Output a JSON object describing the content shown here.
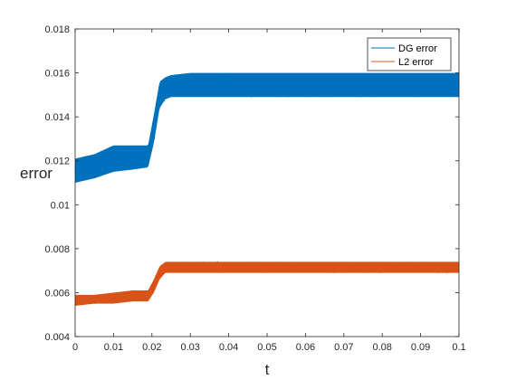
{
  "chart_data": {
    "type": "line",
    "xlabel": "t",
    "ylabel": "error",
    "xlim": [
      0,
      0.1
    ],
    "ylim": [
      0.004,
      0.018
    ],
    "xticks": [
      "0",
      "0.01",
      "0.02",
      "0.03",
      "0.04",
      "0.05",
      "0.06",
      "0.07",
      "0.08",
      "0.09",
      "0.1"
    ],
    "yticks": [
      "0.004",
      "0.006",
      "0.008",
      "0.01",
      "0.012",
      "0.014",
      "0.016",
      "0.018"
    ],
    "grid": false,
    "legend": "top-right",
    "series": [
      {
        "name": "DG error",
        "color": "#0072BD",
        "x": [
          0,
          0.005,
          0.01,
          0.015,
          0.019,
          0.0205,
          0.022,
          0.0235,
          0.025,
          0.03,
          0.04,
          0.05,
          0.06,
          0.07,
          0.08,
          0.09,
          0.1
        ],
        "y": [
          0.0116,
          0.0118,
          0.0121,
          0.0122,
          0.0122,
          0.0135,
          0.015,
          0.0153,
          0.0155,
          0.01555,
          0.01555,
          0.01555,
          0.01555,
          0.01555,
          0.01555,
          0.01555,
          0.01555
        ],
        "band_min": [
          0.011,
          0.0112,
          0.0115,
          0.0116,
          0.0117,
          0.0128,
          0.0144,
          0.0148,
          0.0149,
          0.0149,
          0.0149,
          0.0149,
          0.0149,
          0.0149,
          0.0149,
          0.0149,
          0.0149
        ],
        "band_max": [
          0.0121,
          0.0123,
          0.0127,
          0.0127,
          0.0127,
          0.0141,
          0.0156,
          0.0158,
          0.0159,
          0.016,
          0.016,
          0.016,
          0.016,
          0.016,
          0.016,
          0.016,
          0.016
        ]
      },
      {
        "name": "L2 error",
        "color": "#D95319",
        "x": [
          0,
          0.005,
          0.01,
          0.015,
          0.019,
          0.0205,
          0.022,
          0.0235,
          0.025,
          0.03,
          0.04,
          0.05,
          0.06,
          0.07,
          0.08,
          0.09,
          0.1
        ],
        "y": [
          0.0057,
          0.0057,
          0.0057,
          0.0058,
          0.0058,
          0.0063,
          0.0069,
          0.0072,
          0.0072,
          0.0072,
          0.0072,
          0.0072,
          0.0072,
          0.0072,
          0.0072,
          0.0072,
          0.0072
        ],
        "band_min": [
          0.0054,
          0.0055,
          0.0055,
          0.0056,
          0.0056,
          0.006,
          0.0066,
          0.0069,
          0.0069,
          0.0069,
          0.0069,
          0.0069,
          0.0069,
          0.0069,
          0.0069,
          0.0069,
          0.0069
        ],
        "band_max": [
          0.0059,
          0.0059,
          0.006,
          0.0061,
          0.0061,
          0.0066,
          0.0072,
          0.0074,
          0.0074,
          0.0074,
          0.0074,
          0.0074,
          0.0074,
          0.0074,
          0.0074,
          0.0074,
          0.0074
        ]
      }
    ]
  }
}
